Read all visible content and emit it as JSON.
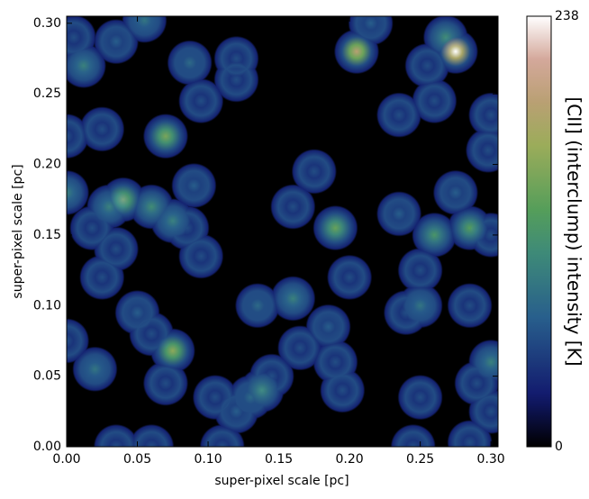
{
  "chart_data": {
    "type": "heatmap",
    "xlabel": "super-pixel scale [pc]",
    "ylabel": "super-pixel scale [pc]",
    "colorbar_label": "[CII] (interclump) intensity [K]",
    "cmap": "gist_earth",
    "xlim": [
      0,
      0.305
    ],
    "ylim": [
      0,
      0.305
    ],
    "xticks": [
      {
        "value": 0,
        "label": "0.00"
      },
      {
        "value": 0.05,
        "label": "0.05"
      },
      {
        "value": 0.1,
        "label": "0.10"
      },
      {
        "value": 0.15,
        "label": "0.15"
      },
      {
        "value": 0.2,
        "label": "0.20"
      },
      {
        "value": 0.25,
        "label": "0.25"
      },
      {
        "value": 0.3,
        "label": "0.30"
      }
    ],
    "yticks": [
      {
        "value": 0,
        "label": "0.00"
      },
      {
        "value": 0.05,
        "label": "0.05"
      },
      {
        "value": 0.1,
        "label": "0.10"
      },
      {
        "value": 0.15,
        "label": "0.15"
      },
      {
        "value": 0.2,
        "label": "0.20"
      },
      {
        "value": 0.25,
        "label": "0.25"
      },
      {
        "value": 0.3,
        "label": "0.30"
      }
    ],
    "clim": [
      0,
      238
    ],
    "cticks": [
      0,
      238
    ],
    "x": [
      0.005,
      0.012,
      0.035,
      0.055,
      0.087,
      0.095,
      0.12,
      0.12,
      0.205,
      0.215,
      0.275,
      0.268,
      0.255,
      0.26,
      0.235,
      0.3,
      0.0,
      0.025,
      0.07,
      0.175,
      0.298,
      0.0,
      0.03,
      0.04,
      0.06,
      0.075,
      0.09,
      0.085,
      0.018,
      0.035,
      0.095,
      0.16,
      0.19,
      0.2,
      0.235,
      0.26,
      0.275,
      0.285,
      0.3,
      0.25,
      0.025,
      0.05,
      0.06,
      0.0,
      0.02,
      0.075,
      0.07,
      0.135,
      0.16,
      0.165,
      0.185,
      0.19,
      0.195,
      0.24,
      0.25,
      0.285,
      0.3,
      0.29,
      0.3,
      0.105,
      0.12,
      0.13,
      0.138,
      0.145,
      0.25,
      0.245,
      0.285,
      0.035,
      0.06,
      0.11
    ],
    "y": [
      0.29,
      0.27,
      0.287,
      0.302,
      0.272,
      0.245,
      0.275,
      0.26,
      0.28,
      0.3,
      0.28,
      0.29,
      0.27,
      0.245,
      0.235,
      0.235,
      0.22,
      0.225,
      0.22,
      0.195,
      0.21,
      0.18,
      0.17,
      0.175,
      0.17,
      0.16,
      0.185,
      0.155,
      0.155,
      0.14,
      0.135,
      0.17,
      0.155,
      0.12,
      0.165,
      0.15,
      0.18,
      0.155,
      0.15,
      0.125,
      0.12,
      0.095,
      0.08,
      0.075,
      0.055,
      0.068,
      0.045,
      0.1,
      0.105,
      0.07,
      0.085,
      0.06,
      0.04,
      0.095,
      0.1,
      0.1,
      0.06,
      0.045,
      0.025,
      0.035,
      0.025,
      0.035,
      0.04,
      0.05,
      0.035,
      0.0,
      0.003,
      0.0,
      0.0,
      0.0
    ],
    "values": [
      60,
      100,
      70,
      90,
      80,
      60,
      60,
      60,
      190,
      70,
      238,
      110,
      60,
      60,
      60,
      60,
      60,
      60,
      150,
      60,
      60,
      100,
      100,
      150,
      110,
      100,
      70,
      60,
      60,
      60,
      60,
      60,
      140,
      60,
      70,
      120,
      70,
      130,
      60,
      60,
      60,
      70,
      60,
      60,
      90,
      160,
      60,
      80,
      100,
      60,
      70,
      60,
      60,
      60,
      90,
      60,
      100,
      60,
      60,
      60,
      70,
      80,
      110,
      60,
      60,
      60,
      60,
      60,
      60,
      60
    ]
  }
}
